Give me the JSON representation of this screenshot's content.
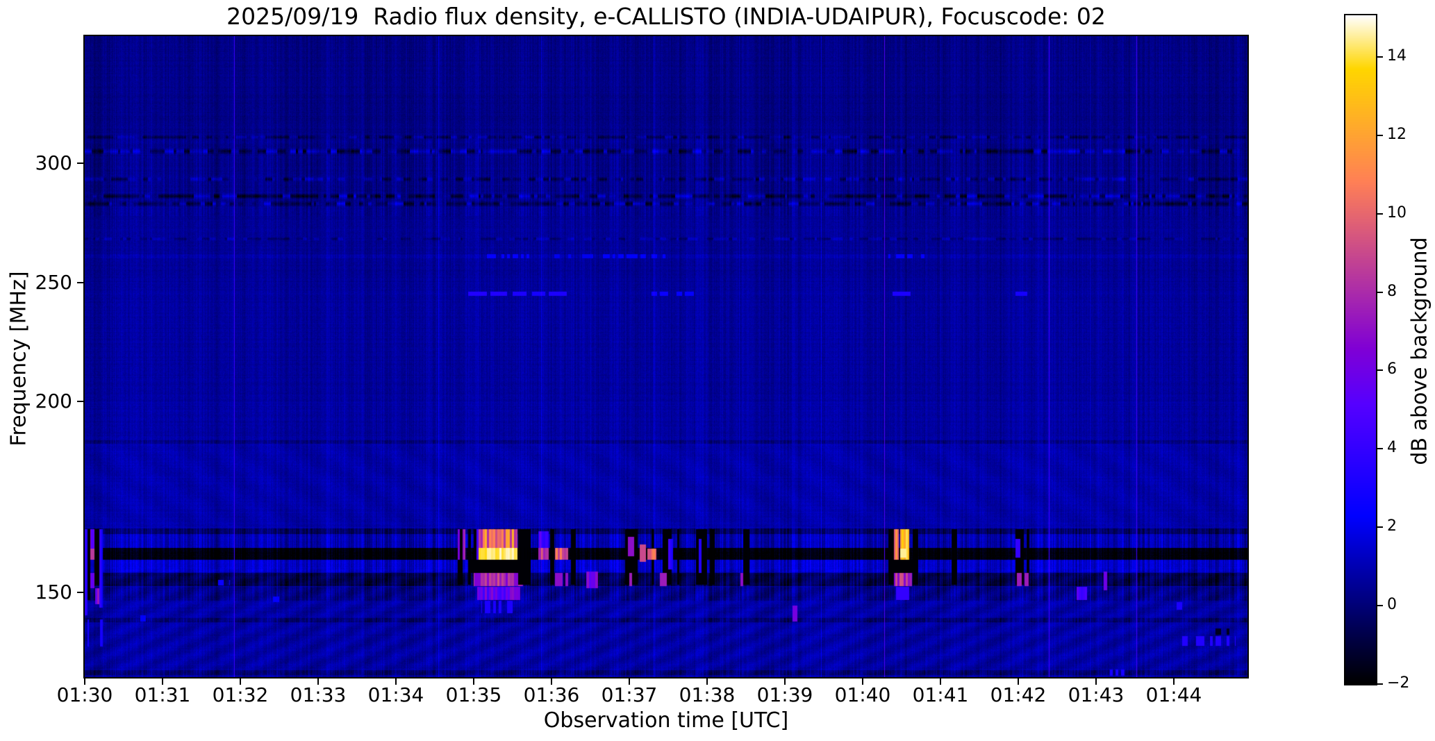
{
  "chart_data": {
    "type": "heatmap",
    "subtype": "radio-spectrogram",
    "title": "2025/09/19  Radio flux density, e-CALLISTO (INDIA-UDAIPUR), Focuscode: 02",
    "date": "2025/09/19",
    "station": "INDIA-UDAIPUR",
    "focuscode": "02",
    "xlabel": "Observation time [UTC]",
    "ylabel": "Frequency [MHz]",
    "colorbar_label": "dB above background",
    "colormap": "gnuplot2",
    "value_range": [
      -2,
      15.06
    ],
    "duration_seconds": 897,
    "time_start": "01:30",
    "x_tick_labels": [
      "01:30",
      "01:31",
      "01:32",
      "01:33",
      "01:34",
      "01:35",
      "01:36",
      "01:37",
      "01:38",
      "01:39",
      "01:40",
      "01:41",
      "01:42",
      "01:43",
      "01:44"
    ],
    "x_tick_interval_seconds": 60,
    "y_tick_values": [
      300,
      250,
      200,
      150
    ],
    "y_axis_anchors": [
      [
        353,
        0
      ],
      [
        300,
        0.1983
      ],
      [
        250,
        0.3846
      ],
      [
        200,
        0.5699
      ],
      [
        150,
        0.8678
      ],
      [
        128,
        1.0
      ]
    ],
    "colorbar_ticks": [
      {
        "label": "14",
        "value": 14
      },
      {
        "label": "12",
        "value": 12
      },
      {
        "label": "10",
        "value": 10
      },
      {
        "label": "8",
        "value": 8
      },
      {
        "label": "6",
        "value": 6
      },
      {
        "label": "4",
        "value": 4
      },
      {
        "label": "2",
        "value": 2
      },
      {
        "label": "0",
        "value": 0
      },
      {
        "label": "−2",
        "value": -2
      }
    ],
    "background_profile": [
      {
        "f": [
          310,
          353
        ],
        "v": 0.25
      },
      {
        "f": [
          282,
          310
        ],
        "v": 0.3
      },
      {
        "f": [
          250,
          282
        ],
        "v": 0.5
      },
      {
        "f": [
          200,
          250
        ],
        "v": 0.62
      },
      {
        "f": [
          189,
          200
        ],
        "v": 0.7
      },
      {
        "f": [
          167,
          189
        ],
        "v": 0.85
      },
      {
        "f": [
          147,
          167
        ],
        "v": 0.9
      },
      {
        "f": [
          128,
          147
        ],
        "v": 0.75
      }
    ],
    "noise": {
      "col_fine": 0.9,
      "col_slow": 0.6,
      "pixel": 0.5,
      "row": 0.24
    },
    "ripples": [
      {
        "f": [
          128,
          156
        ],
        "amp": 0.3,
        "period": 60,
        "slope": 2.2
      },
      {
        "f": [
          167,
          189
        ],
        "amp": 0.15,
        "period": 80,
        "slope": -1.5
      }
    ],
    "speckle_rows": [
      {
        "f": 305,
        "hw": 1.3,
        "amp": 1.5,
        "dark": 0.45,
        "bright": 0.4
      },
      {
        "f": 293.5,
        "hw": 1.0,
        "amp": 1.1,
        "dark": 0.4,
        "bright": 0.3
      },
      {
        "f": 286.3,
        "hw": 1.2,
        "amp": 1.4,
        "dark": 0.55,
        "bright": 0.3
      },
      {
        "f": 283.2,
        "hw": 1.2,
        "amp": 1.3,
        "dark": 0.55,
        "bright": 0.25
      },
      {
        "f": 311,
        "hw": 0.8,
        "amp": 0.7,
        "dark": 0.45,
        "bright": 0.3
      },
      {
        "f": 268.5,
        "hw": 0.8,
        "amp": 0.6,
        "dark": 0.4,
        "bright": 0.3
      }
    ],
    "band_rows": [
      {
        "f": [
          165.2,
          166.8
        ],
        "dv": -1.2,
        "colamp": 1.2
      },
      {
        "f": [
          161.7,
          165.2
        ],
        "dv": 0.15,
        "colamp": 1.4
      },
      {
        "f": [
          158.6,
          161.7
        ],
        "dv": -2.8,
        "colamp": 0.6
      },
      {
        "f": [
          155.2,
          158.6
        ],
        "dv": 0.55,
        "colamp": 1.2
      },
      {
        "f": [
          151.6,
          155.0
        ],
        "dv": -1.5,
        "colamp": 1.3
      },
      {
        "f": [
          147.8,
          151.4
        ],
        "dv": -0.55,
        "colamp": 1.0
      },
      {
        "f": [
          142.2,
          143.4
        ],
        "dv": -0.8,
        "colamp": 0.8
      },
      {
        "f": [
          128.6,
          129.8
        ],
        "dv": -0.8,
        "colamp": 0.6
      },
      {
        "f": [
          189.0,
          189.8
        ],
        "dv": -0.5,
        "colamp": 0.5
      },
      {
        "f": [
          260.2,
          261.9
        ],
        "dv": 0.35,
        "colamp": 0.2
      }
    ],
    "vertical_lines": [
      {
        "t": 16,
        "dv": 1.0,
        "w": 1
      },
      {
        "t": 63,
        "dv": 0.9,
        "w": 1
      },
      {
        "t": 115,
        "v": 4.2,
        "w": 1,
        "mode": "max"
      },
      {
        "t": 200,
        "dv": 0.6,
        "w": 1
      },
      {
        "t": 273,
        "dv": 1.1,
        "w": 1
      },
      {
        "t": 352,
        "dv": 0.9,
        "w": 1
      },
      {
        "t": 439,
        "dv": 1.0,
        "w": 1
      },
      {
        "t": 505,
        "dv": 0.7,
        "w": 1
      },
      {
        "t": 568,
        "dv": 1.1,
        "w": 1
      },
      {
        "t": 617,
        "v": 5.0,
        "w": 1,
        "mode": "max"
      },
      {
        "t": 660,
        "dv": 0.6,
        "w": 1
      },
      {
        "t": 744,
        "v": 4.6,
        "w": 1,
        "mode": "max"
      },
      {
        "t": 811,
        "v": 4.4,
        "w": 1,
        "mode": "max"
      },
      {
        "t": 835,
        "dv": 0.7,
        "w": 1
      }
    ],
    "bursts": [
      {
        "t": [
          0,
          2
        ],
        "f": [
          144,
          166.5
        ],
        "v": 3.5,
        "mode": "max",
        "colvar": 1.5
      },
      {
        "t": [
          2,
          4.5
        ],
        "f": [
          148,
          166.5
        ],
        "v": -1.9,
        "mode": "min"
      },
      {
        "t": [
          4.5,
          7.5
        ],
        "f": [
          161.5,
          166.5
        ],
        "v": 6,
        "mode": "max",
        "colvar": 1.5
      },
      {
        "t": [
          4.5,
          7.5
        ],
        "f": [
          158.5,
          161.5
        ],
        "v": 8.5,
        "mode": "max"
      },
      {
        "t": [
          4.5,
          7.5
        ],
        "f": [
          151,
          155
        ],
        "v": 6,
        "mode": "max",
        "colvar": 1.5
      },
      {
        "t": [
          7.5,
          11.5
        ],
        "f": [
          152,
          166.5
        ],
        "v": -1.9,
        "mode": "min"
      },
      {
        "t": [
          8,
          11.5
        ],
        "f": [
          147,
          151
        ],
        "v": 6.5,
        "mode": "max",
        "colvar": 1
      },
      {
        "t": [
          11.5,
          14
        ],
        "f": [
          146,
          166.5
        ],
        "v": 4,
        "mode": "max",
        "colvar": 2
      },
      {
        "t": [
          1,
          3
        ],
        "f": [
          136,
          143
        ],
        "v": 3,
        "mode": "max",
        "dash": 0.5
      },
      {
        "t": [
          6,
          8.5
        ],
        "f": [
          136,
          143
        ],
        "v": 3,
        "mode": "max",
        "dash": 0.5
      },
      {
        "t": [
          12,
          14
        ],
        "f": [
          136,
          143
        ],
        "v": 3,
        "mode": "max",
        "dash": 0.5
      },
      {
        "t": [
          43,
          47
        ],
        "f": [
          142.5,
          144
        ],
        "v": 2.2,
        "mode": "max"
      },
      {
        "t": [
          93,
          112
        ],
        "f": [
          151.8,
          153.2
        ],
        "v": 2.6,
        "mode": "max",
        "dash": 0.4
      },
      {
        "t": [
          145,
          150
        ],
        "f": [
          147.5,
          149
        ],
        "v": 2.4,
        "mode": "max"
      },
      {
        "t": [
          288,
          304
        ],
        "f": [
          152,
          166.5
        ],
        "v": -1.9,
        "mode": "min",
        "dash": 0.6
      },
      {
        "t": [
          288,
          304
        ],
        "f": [
          158.5,
          166.5
        ],
        "v": 6,
        "mode": "max",
        "dash": 0.35,
        "colvar": 2
      },
      {
        "t": [
          304,
          334
        ],
        "f": [
          161.6,
          166.5
        ],
        "v": 10,
        "mode": "max",
        "colvar": 2.5
      },
      {
        "t": [
          304,
          334
        ],
        "f": [
          158.6,
          161.6
        ],
        "v": 14.3,
        "mode": "max",
        "colvar": 0.7
      },
      {
        "t": [
          296,
          340
        ],
        "f": [
          155.1,
          158.5
        ],
        "v": -1.9,
        "mode": "min"
      },
      {
        "t": [
          300,
          338
        ],
        "f": [
          151.6,
          155
        ],
        "v": 8,
        "mode": "max",
        "colvar": 1.5
      },
      {
        "t": [
          303,
          336
        ],
        "f": [
          148,
          151.5
        ],
        "v": 5.5,
        "mode": "max",
        "colvar": 1.5
      },
      {
        "t": [
          306,
          330
        ],
        "f": [
          144.5,
          147.8
        ],
        "v": 3.2,
        "mode": "max",
        "dash": 0.6
      },
      {
        "t": [
          334,
          344
        ],
        "f": [
          152,
          166.5
        ],
        "v": -1.9,
        "mode": "min",
        "dash": 0.6
      },
      {
        "t": [
          350,
          358
        ],
        "f": [
          158.6,
          161.6
        ],
        "v": 8,
        "mode": "max",
        "colvar": 1.5
      },
      {
        "t": [
          350,
          358
        ],
        "f": [
          161.6,
          166
        ],
        "v": 4,
        "mode": "max",
        "colvar": 1.5
      },
      {
        "t": [
          359,
          362
        ],
        "f": [
          152,
          166.5
        ],
        "v": -1.9,
        "mode": "min"
      },
      {
        "t": [
          363,
          373
        ],
        "f": [
          158.6,
          161.6
        ],
        "v": 9.5,
        "mode": "max",
        "colvar": 1.5
      },
      {
        "t": [
          363,
          373
        ],
        "f": [
          151.6,
          155
        ],
        "v": 7,
        "mode": "max",
        "dash": 0.7
      },
      {
        "t": [
          374,
          379
        ],
        "f": [
          152,
          166.5
        ],
        "v": -1.9,
        "mode": "min",
        "dash": 0.7
      },
      {
        "t": [
          387,
          396
        ],
        "f": [
          151,
          155.5
        ],
        "v": 6,
        "mode": "max",
        "colvar": 1.5
      },
      {
        "t": [
          417,
          453
        ],
        "f": [
          152,
          166.5
        ],
        "v": -1.9,
        "mode": "min",
        "dash": 0.5
      },
      {
        "t": [
          419,
          424
        ],
        "f": [
          159.5,
          164.5
        ],
        "v": 7,
        "mode": "max"
      },
      {
        "t": [
          428,
          433
        ],
        "f": [
          158,
          162.5
        ],
        "v": 9,
        "mode": "max"
      },
      {
        "t": [
          434,
          441
        ],
        "f": [
          158.5,
          161.5
        ],
        "v": 10,
        "mode": "max",
        "colvar": 2
      },
      {
        "t": [
          420,
          426
        ],
        "f": [
          151.6,
          155
        ],
        "v": 7.5,
        "mode": "max",
        "dash": 0.6
      },
      {
        "t": [
          442,
          449
        ],
        "f": [
          151.6,
          155
        ],
        "v": 7.5,
        "mode": "max",
        "dash": 0.6
      },
      {
        "t": [
          450,
          454
        ],
        "f": [
          156,
          164
        ],
        "v": 4,
        "mode": "max",
        "colvar": 1.5
      },
      {
        "t": [
          457,
          486
        ],
        "f": [
          152,
          166.5
        ],
        "v": -1.9,
        "mode": "min",
        "dash": 0.45
      },
      {
        "t": [
          458,
          463
        ],
        "f": [
          155,
          164
        ],
        "v": 3.5,
        "mode": "max",
        "dash": 0.5
      },
      {
        "t": [
          472,
          478
        ],
        "f": [
          155,
          164
        ],
        "v": 3.5,
        "mode": "max",
        "dash": 0.5
      },
      {
        "t": [
          506,
          513
        ],
        "f": [
          152,
          166.5
        ],
        "v": -1.9,
        "mode": "min",
        "dash": 0.5
      },
      {
        "t": [
          506,
          513
        ],
        "f": [
          151.6,
          155
        ],
        "v": 7,
        "mode": "max",
        "dash": 0.55
      },
      {
        "t": [
          546,
          550
        ],
        "f": [
          142.4,
          146.6
        ],
        "v": 6.2,
        "mode": "max"
      },
      {
        "t": [
          620,
          624
        ],
        "f": [
          152,
          166.5
        ],
        "v": -1.9,
        "mode": "min"
      },
      {
        "t": [
          624,
          628
        ],
        "f": [
          158.5,
          166.5
        ],
        "v": 11,
        "mode": "max",
        "colvar": 2
      },
      {
        "t": [
          629,
          636
        ],
        "f": [
          158.5,
          166.5
        ],
        "v": 13,
        "mode": "max",
        "colvar": 2
      },
      {
        "t": [
          629,
          634
        ],
        "f": [
          159,
          161.5
        ],
        "v": 14.5,
        "mode": "max"
      },
      {
        "t": [
          622,
          641
        ],
        "f": [
          155,
          158.5
        ],
        "v": -1.9,
        "mode": "min"
      },
      {
        "t": [
          624,
          638
        ],
        "f": [
          151.6,
          155
        ],
        "v": 8,
        "mode": "max",
        "colvar": 1.5
      },
      {
        "t": [
          626,
          636
        ],
        "f": [
          148,
          151.5
        ],
        "v": 4,
        "mode": "max",
        "dash": 0.6
      },
      {
        "t": [
          637,
          643
        ],
        "f": [
          152,
          166.5
        ],
        "v": -1.9,
        "mode": "min",
        "dash": 0.6
      },
      {
        "t": [
          667,
          673
        ],
        "f": [
          152,
          166.5
        ],
        "v": -1.9,
        "mode": "min",
        "dash": 0.55
      },
      {
        "t": [
          716,
          730
        ],
        "f": [
          152,
          166.5
        ],
        "v": -1.9,
        "mode": "min",
        "dash": 0.5
      },
      {
        "t": [
          719,
          723
        ],
        "f": [
          151.6,
          155
        ],
        "v": 7.5,
        "mode": "max"
      },
      {
        "t": [
          725,
          728
        ],
        "f": [
          151.6,
          155
        ],
        "v": 7.5,
        "mode": "max"
      },
      {
        "t": [
          718,
          722
        ],
        "f": [
          159,
          164
        ],
        "v": 4,
        "mode": "max"
      },
      {
        "t": [
          765,
          773
        ],
        "f": [
          148,
          151.5
        ],
        "v": 4.5,
        "mode": "max",
        "colvar": 1
      },
      {
        "t": [
          786,
          789
        ],
        "f": [
          150.5,
          155.5
        ],
        "v": 6,
        "mode": "max"
      },
      {
        "t": [
          840,
          861
        ],
        "f": [
          145.5,
          147.5
        ],
        "v": 3.2,
        "mode": "max",
        "dash": 0.45
      },
      {
        "t": [
          845,
          888
        ],
        "f": [
          136.2,
          138.6
        ],
        "v": 3.4,
        "mode": "max",
        "dash": 0.4
      },
      {
        "t": [
          871,
          884
        ],
        "f": [
          139,
          140.7
        ],
        "v": -1.5,
        "mode": "min",
        "dash": 0.5
      },
      {
        "t": [
          785,
          802
        ],
        "f": [
          128.3,
          130
        ],
        "v": 3,
        "mode": "max",
        "dash": 0.6
      },
      {
        "t": [
          296,
          310
        ],
        "f": [
          244.5,
          246.1
        ],
        "v": 3.4,
        "mode": "max"
      },
      {
        "t": [
          313,
          326
        ],
        "f": [
          244.5,
          246.1
        ],
        "v": 3.4,
        "mode": "max"
      },
      {
        "t": [
          330,
          341
        ],
        "f": [
          244.5,
          246.1
        ],
        "v": 3.2,
        "mode": "max"
      },
      {
        "t": [
          345,
          355
        ],
        "f": [
          244.5,
          246.1
        ],
        "v": 3.0,
        "mode": "max"
      },
      {
        "t": [
          358,
          372
        ],
        "f": [
          244.5,
          246.1
        ],
        "v": 3.2,
        "mode": "max"
      },
      {
        "t": [
          437,
          452
        ],
        "f": [
          244.5,
          246.1
        ],
        "v": 2.6,
        "mode": "max",
        "dash": 0.6
      },
      {
        "t": [
          456,
          470
        ],
        "f": [
          244.5,
          246.1
        ],
        "v": 2.4,
        "mode": "max",
        "dash": 0.6
      },
      {
        "t": [
          623,
          637
        ],
        "f": [
          244.5,
          246.1
        ],
        "v": 3.2,
        "mode": "max"
      },
      {
        "t": [
          718,
          727
        ],
        "f": [
          244.5,
          246.1
        ],
        "v": 3.0,
        "mode": "max"
      },
      {
        "t": [
          310,
          345
        ],
        "f": [
          260.3,
          261.8
        ],
        "v": 2.4,
        "mode": "max",
        "dash": 0.7
      },
      {
        "t": [
          362,
          392
        ],
        "f": [
          260.3,
          261.8
        ],
        "v": 2.0,
        "mode": "max",
        "dash": 0.6
      },
      {
        "t": [
          400,
          448
        ],
        "f": [
          260.3,
          261.8
        ],
        "v": 2.2,
        "mode": "max",
        "dash": 0.6
      },
      {
        "t": [
          620,
          648
        ],
        "f": [
          260.3,
          261.8
        ],
        "v": 2.4,
        "mode": "max",
        "dash": 0.7
      }
    ]
  }
}
